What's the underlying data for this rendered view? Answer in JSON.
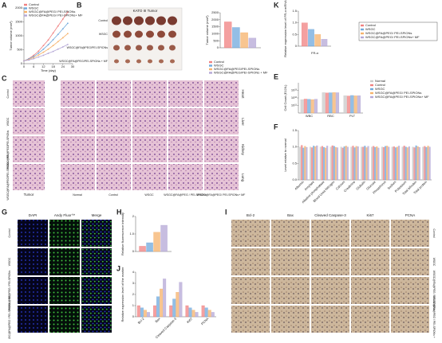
{
  "figure": {
    "panel_labels": [
      "A",
      "B",
      "C",
      "D",
      "E",
      "F",
      "G",
      "H",
      "I",
      "J",
      "K"
    ],
    "b_photo": {
      "title": "KATO III Tumor",
      "rows": [
        "Control",
        "WSGC",
        "WSGC@FA@PEG/PEI-SPIONs",
        "WSGC@FA@PEG/PEI-SPIONs + MF"
      ]
    },
    "c": {
      "rows": [
        "Control",
        "WSGC",
        "WSGC@FA@PEG/PEI-SPIONs",
        "WSGC@FA@PEG/PEI-SPIONs + MF"
      ],
      "col": "Tumor"
    },
    "d": {
      "cols": [
        "Normal",
        "Control",
        "WSGC",
        "WSGC@FA@PEG / PEI-SPIONs",
        "WSGC@FA@PEG/ PEI-SPIONs+ MF"
      ],
      "rows": [
        "Heart",
        "Liver",
        "Kidney",
        "Lung"
      ]
    },
    "g": {
      "cols": [
        "DAPI",
        "Andy Fluor™",
        "Merge"
      ],
      "rows": [
        "Control",
        "WSGC",
        "WSGC@FA@PEG / PEI-SPIONs",
        "WSGC@FA@PEG / PEI-SPIONs + MF"
      ]
    },
    "i": {
      "cols": [
        "Bcl-2",
        "Bax",
        "Cleaved Caspase-3",
        "Ki67",
        "PCNA"
      ],
      "rows": [
        "Control",
        "WSGC",
        "WSGC@FA@PEG / PEI-SPIONs",
        "WSGC@FA@PEG / PEI-SPIONs + MF"
      ]
    }
  },
  "chart_data": [
    {
      "type": "line",
      "xlabel": "Time (day)",
      "ylabel": "Tumor volume (mm³)",
      "legend": "upper left",
      "x": [
        0,
        3,
        6,
        9,
        12,
        15,
        18,
        21,
        24,
        27
      ],
      "xlim": [
        0,
        30
      ],
      "xticks": [
        0,
        6,
        12,
        18,
        24,
        30
      ],
      "ylim": [
        0,
        2000
      ],
      "yticks": [
        0,
        500,
        1000,
        1500,
        2000
      ],
      "series": [
        {
          "name": "Control",
          "color": "#f08080",
          "values": [
            100,
            180,
            300,
            450,
            650,
            850,
            1100,
            1350,
            1600,
            1850
          ]
        },
        {
          "name": "WSGC",
          "color": "#6fa8dc",
          "values": [
            100,
            170,
            260,
            380,
            520,
            680,
            860,
            1050,
            1250,
            1450
          ]
        },
        {
          "name": "WSGC@FA@PEG/ PEI-SPIONs",
          "color": "#f6b26b",
          "values": [
            100,
            150,
            220,
            310,
            410,
            520,
            650,
            790,
            930,
            1080
          ]
        },
        {
          "name": "WSGC@FA@PEG/ PEI-SPIONs+ MF",
          "color": "#b4a7d6",
          "values": [
            100,
            130,
            180,
            240,
            300,
            370,
            440,
            520,
            600,
            690
          ]
        }
      ]
    },
    {
      "type": "bar",
      "ylabel": "Tumor volume (mm³)",
      "legend": "bottom",
      "ylim": [
        0,
        2500
      ],
      "yticks": [
        0,
        500,
        1000,
        1500,
        2000,
        2500
      ],
      "series": [
        {
          "name": "Control",
          "color": "#f08080",
          "values": [
            1850
          ]
        },
        {
          "name": "WSGC",
          "color": "#6fa8dc",
          "values": [
            1450
          ]
        },
        {
          "name": "WSGC@FA@PEG/PEI-SPIONs",
          "color": "#f6b26b",
          "values": [
            1080
          ]
        },
        {
          "name": "WSGC@FA@PEG/PEI-SPIONs + MF",
          "color": "#b4a7d6",
          "values": [
            690
          ]
        }
      ]
    },
    {
      "type": "bar",
      "ylabel": "Relative expression level of FR-α mRNA",
      "xlabel": "FR-α",
      "legend": "right",
      "ylim": [
        0,
        1.5
      ],
      "yticks": [
        0,
        0.5,
        {
          "value": 1,
          "label": "1.0"
        },
        1.5
      ],
      "series": [
        {
          "name": "Control",
          "color": "#f08080",
          "values": [
            1
          ]
        },
        {
          "name": "WSGC",
          "color": "#6fa8dc",
          "values": [
            0.72
          ]
        },
        {
          "name": "WSGC@FA@PEG/ PEI-SPIONs",
          "color": "#f6b26b",
          "values": [
            0.5
          ]
        },
        {
          "name": "WSGC@FA@PEG/ PEI-SPIONs+ MF",
          "color": "#b4a7d6",
          "values": [
            0.3
          ]
        }
      ]
    },
    {
      "type": "bar",
      "ylabel": "Cell Count (E12/L)",
      "legend": "right",
      "log": true,
      "categories": [
        "WBC",
        "RBC",
        "PLT"
      ],
      "ylim": [
        10000000000.0,
        100000000000000.0
      ],
      "yticks": [
        {
          "value": 100000000000.0,
          "label": "10¹¹"
        },
        {
          "value": 1000000000000.0,
          "label": "10¹²"
        },
        {
          "value": 10000000000000.0,
          "label": "10¹³"
        }
      ],
      "series": [
        {
          "name": "Normal",
          "color": "#c9c9c9",
          "values": [
            600000000000.0,
            5000000000000.0,
            2000000000000.0
          ]
        },
        {
          "name": "Control",
          "color": "#f08080",
          "values": [
            700000000000.0,
            4500000000000.0,
            1800000000000.0
          ]
        },
        {
          "name": "WSGC",
          "color": "#6fa8dc",
          "values": [
            650000000000.0,
            4800000000000.0,
            2100000000000.0
          ]
        },
        {
          "name": "WSGC@FA@PEG/ PEI-SPIONs",
          "color": "#f6b26b",
          "values": [
            600000000000.0,
            5200000000000.0,
            1900000000000.0
          ]
        },
        {
          "name": "WSGC@FA@PEG/ PEI-SPIONs+ MF",
          "color": "#b4a7d6",
          "values": [
            680000000000.0,
            4900000000000.0,
            2000000000000.0
          ]
        }
      ]
    },
    {
      "type": "bar",
      "ylabel": "Level relative to normal",
      "categories": [
        "Albumin",
        "Amylase",
        "Alkaline phosphatase",
        "Blood Urea Nitrogen",
        "Calcium",
        "Creatinine",
        "Globulin",
        "Glucose",
        "Phosphorus",
        "Sodium",
        "Potassium",
        "Total bilirubin",
        "Total protein"
      ],
      "ylim": [
        0,
        1.5
      ],
      "yticks": [
        {
          "value": 0,
          "label": "0.0"
        },
        0.5,
        {
          "value": 1,
          "label": "1.0"
        },
        1.5
      ],
      "series": [
        {
          "name": "Normal",
          "color": "#c9c9c9",
          "values": [
            1,
            1,
            1,
            1,
            1,
            1,
            1,
            1,
            1,
            1,
            1,
            1,
            1
          ]
        },
        {
          "name": "Control",
          "color": "#f08080",
          "values": [
            1.05,
            0.98,
            1.02,
            1.04,
            0.97,
            1.03,
            1,
            1.02,
            0.99,
            1.01,
            1.03,
            0.98,
            1.02
          ]
        },
        {
          "name": "WSGC",
          "color": "#6fa8dc",
          "values": [
            0.97,
            1.03,
            0.99,
            1.02,
            1.01,
            0.98,
            1.03,
            0.99,
            1.02,
            0.98,
            1,
            1.04,
            0.99
          ]
        },
        {
          "name": "WSGC@FA@PEG/ PEI-SPIONs",
          "color": "#f6b26b",
          "values": [
            1.02,
            1.01,
            0.97,
            0.99,
            1.03,
            1.02,
            0.98,
            1.01,
            1.03,
            1,
            0.98,
            1.01,
            1.03
          ]
        },
        {
          "name": "WSGC@FA@PEG/ PEI-SPIONs+ MF",
          "color": "#b4a7d6",
          "values": [
            0.99,
            1.04,
            1.03,
            0.98,
            1,
            1.01,
            1.02,
            0.97,
            1,
            1.03,
            1.01,
            0.99,
            1
          ]
        }
      ]
    },
    {
      "type": "bar",
      "ylabel": "Relative fluorescence intensity",
      "ylim": [
        0,
        2
      ],
      "yticks": [
        0,
        {
          "value": 1,
          "label": "1.0"
        },
        2
      ],
      "series": [
        {
          "name": "Control",
          "color": "#f08080",
          "values": [
            0.3
          ]
        },
        {
          "name": "WSGC",
          "color": "#6fa8dc",
          "values": [
            0.5
          ]
        },
        {
          "name": "WSGC@FA@PEG/ PEI-SPIONs",
          "color": "#f6b26b",
          "values": [
            1.1
          ]
        },
        {
          "name": "WSGC@FA@PEG/ PEI-SPIONs+ MF",
          "color": "#b4a7d6",
          "values": [
            1.5
          ]
        }
      ]
    },
    {
      "type": "bar",
      "ylabel": "Relative expression level of the marker",
      "categories": [
        "Bcl-2",
        "Bax",
        "Cleaved Caspase-3",
        "Ki67",
        "PCNA"
      ],
      "ylim": [
        0,
        4
      ],
      "yticks": [
        0,
        1,
        2,
        3,
        4
      ],
      "series": [
        {
          "name": "Control",
          "color": "#f08080",
          "values": [
            1,
            1,
            1,
            1,
            1
          ]
        },
        {
          "name": "WSGC",
          "color": "#6fa8dc",
          "values": [
            0.8,
            1.8,
            1.6,
            0.8,
            0.8
          ]
        },
        {
          "name": "WSGC@FA@PEG/ PEI-SPIONs",
          "color": "#f6b26b",
          "values": [
            0.6,
            2.5,
            2.2,
            0.6,
            0.6
          ]
        },
        {
          "name": "WSGC@FA@PEG/ PEI-SPIONs+ MF",
          "color": "#b4a7d6",
          "values": [
            0.4,
            3.4,
            3.1,
            0.4,
            0.4
          ]
        }
      ]
    }
  ]
}
